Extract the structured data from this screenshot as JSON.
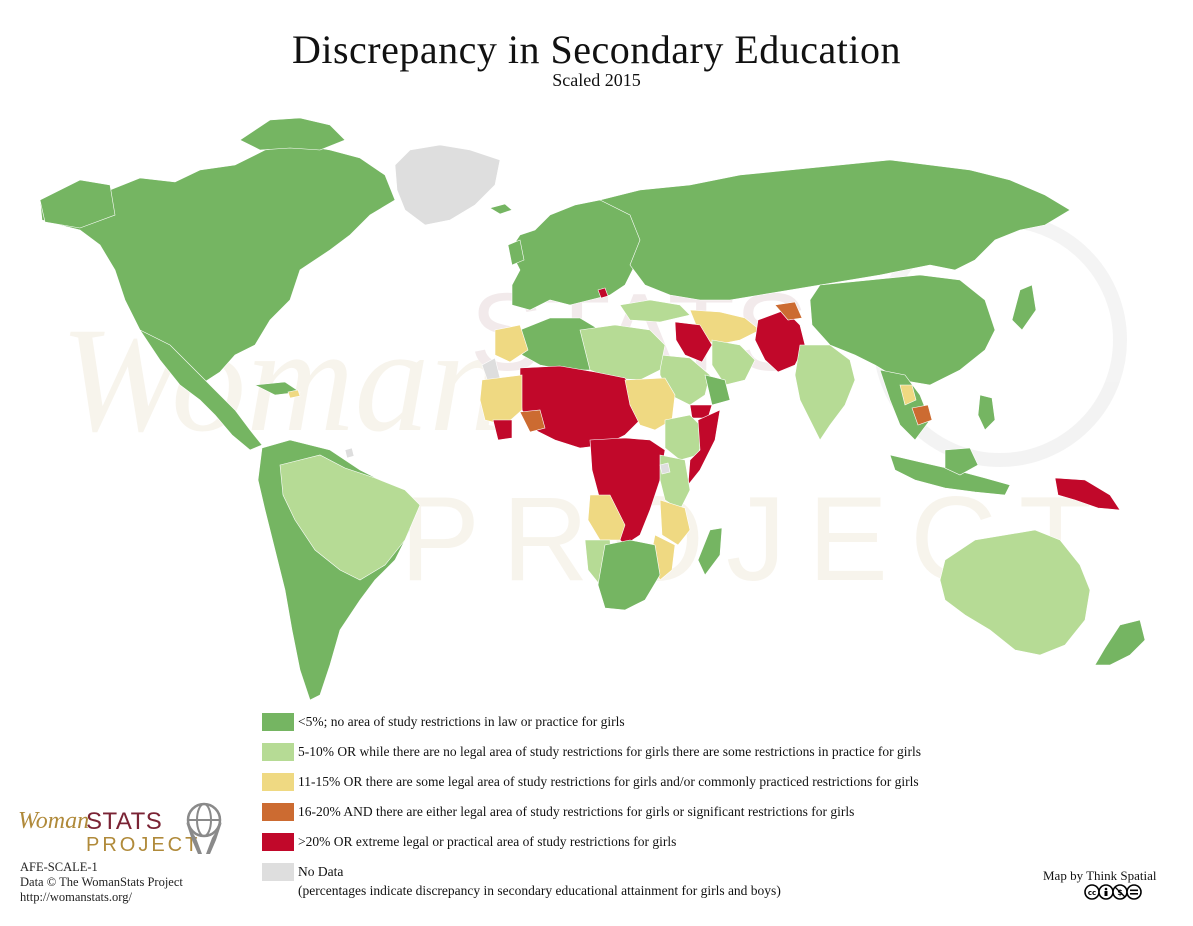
{
  "title": "Discrepancy in Secondary Education",
  "subtitle": "Scaled 2015",
  "colors": {
    "lt5": "#75b562",
    "5to10": "#b6db95",
    "11to15": "#efd982",
    "16to20": "#cc6b31",
    "gt20": "#c1082a",
    "nodata": "#dedede",
    "ocean": "#ffffff"
  },
  "legend": {
    "items": [
      {
        "key": "lt5",
        "label": "<5%; no area of study restrictions in law or practice for girls"
      },
      {
        "key": "5to10",
        "label": "5-10% OR while there are no legal area of study restrictions for girls there are some restrictions in practice for girls"
      },
      {
        "key": "11to15",
        "label": "11-15% OR there are some legal area of study restrictions for girls and/or commonly practiced restrictions for girls"
      },
      {
        "key": "16to20",
        "label": "16-20% AND there are either legal area of study restrictions for girls or significant restrictions for girls"
      },
      {
        "key": "gt20",
        "label": ">20% OR extreme legal or practical area of study restrictions for girls"
      },
      {
        "key": "nodata",
        "label": "No Data"
      }
    ],
    "note": "(percentages indicate discrepancy in secondary educational attainment for girls and boys)"
  },
  "logo": {
    "word1": "Woman",
    "word2": "STATS",
    "word3": "PROJECT",
    "icon": "globe-hands-icon"
  },
  "credits": {
    "code": "AFE-SCALE-1",
    "data": "Data © The WomanStats Project",
    "url": "http://womanstats.org/"
  },
  "map_by": "Map by Think Spatial",
  "license_icon": "creative-commons-by-nc-nd-icon",
  "watermark": {
    "word1": "Woman",
    "word2": "STATS",
    "word3": "PROJECT"
  }
}
